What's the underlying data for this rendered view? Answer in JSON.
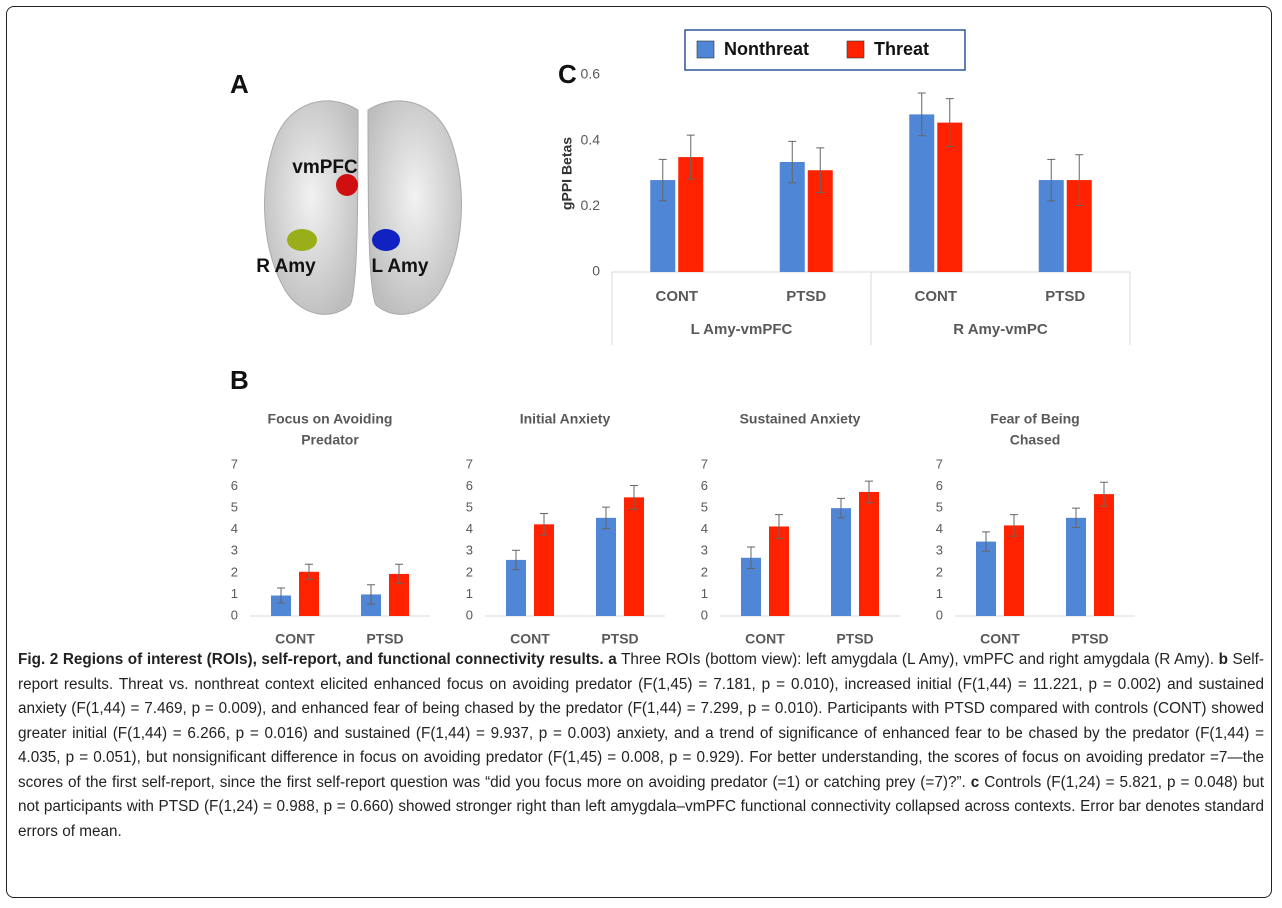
{
  "panels": {
    "a": "A",
    "b": "B",
    "c": "C"
  },
  "brain_labels": [
    "vmPFC",
    "R Amy",
    "L Amy"
  ],
  "chart_data": [
    {
      "type": "bar",
      "ylabel": "gPPI Betas",
      "categories": [
        "CONT",
        "PTSD",
        "CONT",
        "PTSD"
      ],
      "groups": [
        "L Amy-vmPFC",
        "R Amy-vmPC"
      ],
      "series": [
        {
          "name": "Nonthreat",
          "color": "#4f86d6",
          "values": [
            0.28,
            0.335,
            0.48,
            0.28
          ],
          "errors": [
            0.063,
            0.063,
            0.065,
            0.063
          ]
        },
        {
          "name": "Threat",
          "color": "#ff2200",
          "values": [
            0.35,
            0.31,
            0.455,
            0.28
          ],
          "errors": [
            0.067,
            0.068,
            0.073,
            0.077
          ]
        }
      ],
      "ylim": [
        0,
        0.6
      ],
      "yticks": [
        0,
        0.2,
        0.4,
        0.6
      ],
      "legend": "top"
    },
    {
      "type": "bar",
      "title": [
        "Focus on Avoiding",
        "Predator"
      ],
      "categories": [
        "CONT",
        "PTSD"
      ],
      "series": [
        {
          "color": "#4f86d6",
          "values": [
            0.95,
            1.0
          ],
          "errors": [
            0.35,
            0.45
          ]
        },
        {
          "color": "#ff2200",
          "values": [
            2.05,
            1.95
          ],
          "errors": [
            0.35,
            0.45
          ]
        }
      ],
      "ylim": [
        0,
        7
      ],
      "yticks": [
        0,
        1,
        2,
        3,
        4,
        5,
        6,
        7
      ]
    },
    {
      "type": "bar",
      "title": [
        "Initial Anxiety"
      ],
      "categories": [
        "CONT",
        "PTSD"
      ],
      "series": [
        {
          "color": "#4f86d6",
          "values": [
            2.6,
            4.55
          ],
          "errors": [
            0.45,
            0.5
          ]
        },
        {
          "color": "#ff2200",
          "values": [
            4.25,
            5.5
          ],
          "errors": [
            0.5,
            0.55
          ]
        }
      ],
      "ylim": [
        0,
        7
      ],
      "yticks": [
        0,
        1,
        2,
        3,
        4,
        5,
        6,
        7
      ]
    },
    {
      "type": "bar",
      "title": [
        "Sustained Anxiety"
      ],
      "categories": [
        "CONT",
        "PTSD"
      ],
      "series": [
        {
          "color": "#4f86d6",
          "values": [
            2.7,
            5.0
          ],
          "errors": [
            0.5,
            0.45
          ]
        },
        {
          "color": "#ff2200",
          "values": [
            4.15,
            5.75
          ],
          "errors": [
            0.55,
            0.5
          ]
        }
      ],
      "ylim": [
        0,
        7
      ],
      "yticks": [
        0,
        1,
        2,
        3,
        4,
        5,
        6,
        7
      ]
    },
    {
      "type": "bar",
      "title": [
        "Fear of Being",
        "Chased"
      ],
      "categories": [
        "CONT",
        "PTSD"
      ],
      "series": [
        {
          "color": "#4f86d6",
          "values": [
            3.45,
            4.55
          ],
          "errors": [
            0.45,
            0.45
          ]
        },
        {
          "color": "#ff2200",
          "values": [
            4.2,
            5.65
          ],
          "errors": [
            0.5,
            0.55
          ]
        }
      ],
      "ylim": [
        0,
        7
      ],
      "yticks": [
        0,
        1,
        2,
        3,
        4,
        5,
        6,
        7
      ]
    }
  ],
  "caption": [
    {
      "text": "Fig. 2 Regions of interest (ROIs), self-report, and functional connectivity results.",
      "bold": true
    },
    {
      "text": " ",
      "bold": false
    },
    {
      "text": "a",
      "bold": true
    },
    {
      "text": " Three ROIs (bottom view): left amygdala (L Amy), vmPFC and right amygdala (R Amy). ",
      "bold": false
    },
    {
      "text": "b",
      "bold": true
    },
    {
      "text": " Self-report results. Threat vs. nonthreat context elicited enhanced focus on avoiding predator (F(1,45) = 7.181, p = 0.010), increased initial (F(1,44) = 11.221, p = 0.002) and sustained anxiety (F(1,44) = 7.469, p = 0.009), and enhanced fear of being chased by the predator (F(1,44) = 7.299, p = 0.010). Participants with PTSD compared with controls (CONT) showed greater initial (F(1,44) = 6.266, p = 0.016) and sustained (F(1,44) = 9.937, p = 0.003) anxiety, and a trend of significance of enhanced fear to be chased by the predator (F(1,44) = 4.035, p = 0.051), but nonsignificant difference in focus on avoiding predator (F(1,45) = 0.008, p = 0.929). For better understanding, the scores of focus on avoiding predator =7—the scores of the first self-report, since the first self-report question was “did you focus more on avoiding predator (=1) or catching prey (=7)?”. ",
      "bold": false
    },
    {
      "text": "c",
      "bold": true
    },
    {
      "text": " Controls (F(1,24) = 5.821, p = 0.048) but not participants with PTSD (F(1,24) = 0.988, p = 0.660) showed stronger right than left amygdala–vmPFC functional connectivity collapsed across contexts. Error bar denotes standard errors of mean.",
      "bold": false
    }
  ]
}
